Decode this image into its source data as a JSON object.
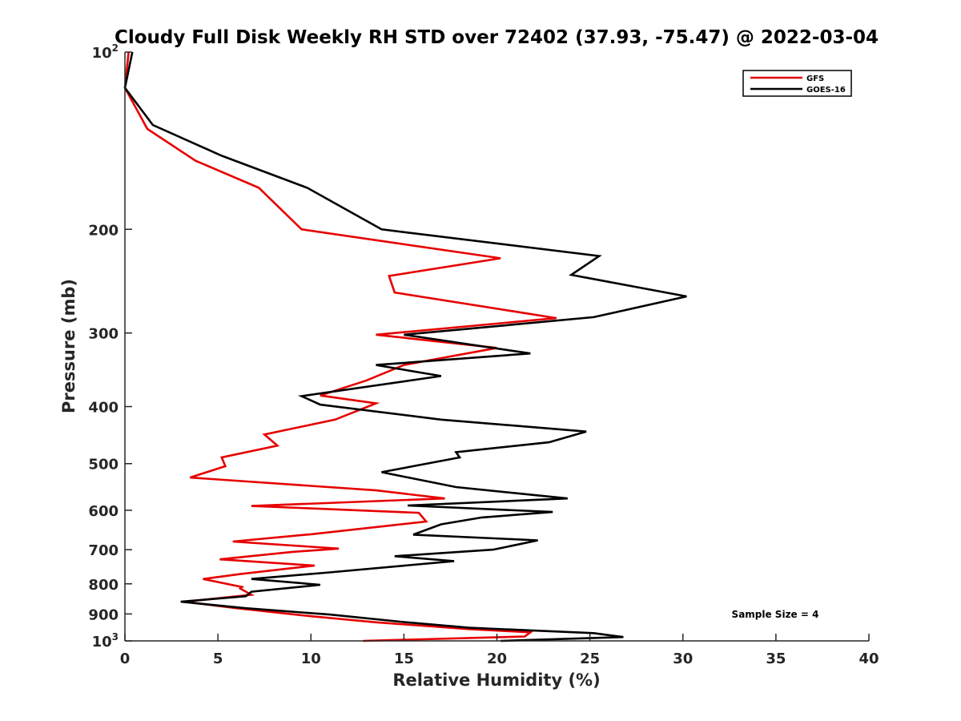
{
  "chart_data": {
    "type": "line",
    "title": "Cloudy Full Disk Weekly RH STD over 72402 (37.93, -75.47) @ 2022-03-04",
    "xlabel": "Relative Humidity (%)",
    "ylabel": "Pressure (mb)",
    "xlim": [
      0,
      40
    ],
    "ylim": [
      100,
      1000
    ],
    "y_scale": "log",
    "y_reversed": true,
    "grid": false,
    "legend_position": "top-right",
    "x_ticks": [
      0,
      5,
      10,
      15,
      20,
      25,
      30,
      35,
      40
    ],
    "y_ticks": [
      {
        "value": 100,
        "base": "10",
        "exp": "2"
      },
      {
        "value": 200,
        "label": "200"
      },
      {
        "value": 300,
        "label": "300"
      },
      {
        "value": 400,
        "label": "400"
      },
      {
        "value": 500,
        "label": "500"
      },
      {
        "value": 600,
        "label": "600"
      },
      {
        "value": 700,
        "label": "700"
      },
      {
        "value": 800,
        "label": "800"
      },
      {
        "value": 900,
        "label": "900"
      },
      {
        "value": 1000,
        "base": "10",
        "exp": "3"
      }
    ],
    "annotation": "Sample Size = 4",
    "series": [
      {
        "name": "GFS",
        "color": "#e60000",
        "points": [
          [
            0.2,
            100
          ],
          [
            0.0,
            115
          ],
          [
            1.2,
            135
          ],
          [
            3.8,
            153
          ],
          [
            7.2,
            170
          ],
          [
            9.5,
            200
          ],
          [
            20.2,
            224
          ],
          [
            14.2,
            240
          ],
          [
            14.5,
            256
          ],
          [
            23.2,
            283
          ],
          [
            13.5,
            302
          ],
          [
            20.0,
            318
          ],
          [
            15.0,
            340
          ],
          [
            13.0,
            361
          ],
          [
            10.5,
            383
          ],
          [
            13.5,
            395
          ],
          [
            11.3,
            421
          ],
          [
            7.5,
            446
          ],
          [
            8.2,
            466
          ],
          [
            5.2,
            488
          ],
          [
            5.4,
            505
          ],
          [
            3.5,
            528
          ],
          [
            13.5,
            555
          ],
          [
            17.2,
            573
          ],
          [
            6.8,
            590
          ],
          [
            15.8,
            606
          ],
          [
            16.2,
            627
          ],
          [
            10.0,
            659
          ],
          [
            5.8,
            678
          ],
          [
            11.5,
            697
          ],
          [
            9.0,
            706
          ],
          [
            5.1,
            727
          ],
          [
            10.2,
            745
          ],
          [
            6.2,
            770
          ],
          [
            4.2,
            785
          ],
          [
            6.3,
            810
          ],
          [
            6.2,
            815
          ],
          [
            6.8,
            835
          ],
          [
            3.2,
            858
          ],
          [
            6.0,
            880
          ],
          [
            10.0,
            908
          ],
          [
            13.5,
            930
          ],
          [
            18.5,
            955
          ],
          [
            21.8,
            967
          ],
          [
            21.5,
            983
          ],
          [
            12.8,
            1000
          ]
        ]
      },
      {
        "name": "GOES-16",
        "color": "#000000",
        "points": [
          [
            0.4,
            100
          ],
          [
            0.0,
            115
          ],
          [
            1.5,
            133
          ],
          [
            5.2,
            150
          ],
          [
            9.8,
            170
          ],
          [
            13.8,
            200
          ],
          [
            25.5,
            222
          ],
          [
            24.0,
            239
          ],
          [
            30.2,
            260
          ],
          [
            25.2,
            282
          ],
          [
            15.0,
            302
          ],
          [
            21.8,
            325
          ],
          [
            13.5,
            340
          ],
          [
            17.0,
            355
          ],
          [
            9.5,
            384
          ],
          [
            10.5,
            397
          ],
          [
            17.0,
            421
          ],
          [
            24.8,
            441
          ],
          [
            22.8,
            460
          ],
          [
            17.8,
            478
          ],
          [
            18.0,
            488
          ],
          [
            13.8,
            517
          ],
          [
            17.8,
            548
          ],
          [
            23.8,
            573
          ],
          [
            15.2,
            589
          ],
          [
            23.0,
            604
          ],
          [
            19.2,
            617
          ],
          [
            17.0,
            634
          ],
          [
            15.5,
            660
          ],
          [
            22.2,
            675
          ],
          [
            19.8,
            700
          ],
          [
            14.5,
            718
          ],
          [
            17.7,
            732
          ],
          [
            11.0,
            765
          ],
          [
            6.8,
            785
          ],
          [
            10.5,
            803
          ],
          [
            6.8,
            825
          ],
          [
            6.5,
            840
          ],
          [
            3.0,
            858
          ],
          [
            6.5,
            880
          ],
          [
            11.0,
            902
          ],
          [
            15.0,
            929
          ],
          [
            18.5,
            950
          ],
          [
            25.2,
            970
          ],
          [
            26.8,
            985
          ],
          [
            20.2,
            1000
          ]
        ]
      }
    ]
  }
}
